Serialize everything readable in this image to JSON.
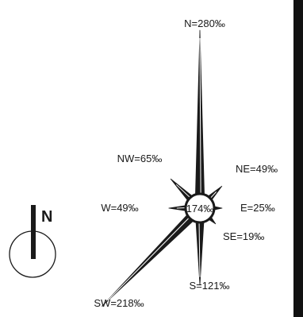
{
  "north_indicator": {
    "label": "N",
    "icon": "north-arrow-icon"
  },
  "center": {
    "label": "174‰",
    "value": 174
  },
  "directions": [
    {
      "key": "N",
      "label": "N=280‰",
      "value": 280
    },
    {
      "key": "NE",
      "label": "NE=49‰",
      "value": 49
    },
    {
      "key": "E",
      "label": "E=25‰",
      "value": 25
    },
    {
      "key": "SE",
      "label": "SE=19‰",
      "value": 19
    },
    {
      "key": "S",
      "label": "S=121‰",
      "value": 121
    },
    {
      "key": "SW",
      "label": "SW=218‰",
      "value": 218
    },
    {
      "key": "W",
      "label": "W=49‰",
      "value": 49
    },
    {
      "key": "NW",
      "label": "NW=65‰",
      "value": 65
    }
  ],
  "colors": {
    "ink": "#1a1a1a",
    "bar": "#111111",
    "background": "#ffffff"
  }
}
